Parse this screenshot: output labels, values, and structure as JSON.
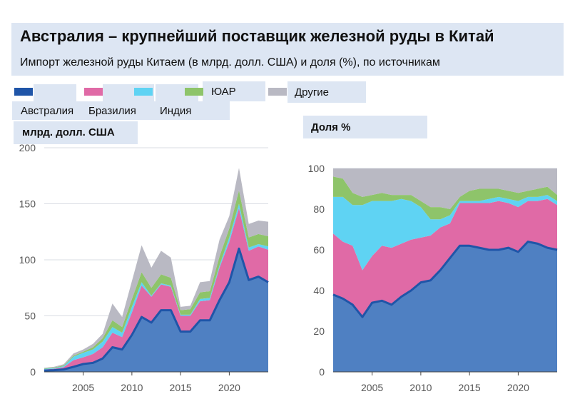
{
  "title": "Австралия – крупнейший поставщик железной руды в Китай",
  "subtitle": "Импорт железной руды Китаем (в млрд. долл. США) и доля (%), по источникам",
  "legend": [
    {
      "name": "Австралия",
      "color": "#1f55a8"
    },
    {
      "name": "Бразилия",
      "color": "#e06aa6"
    },
    {
      "name": "Индия",
      "color": "#5fd3f3"
    },
    {
      "name": "ЮАР",
      "color": "#8ec46a"
    },
    {
      "name": "Другие",
      "color": "#b9b9c3"
    }
  ],
  "colors": {
    "header_bg": "#dde6f3",
    "grid": "#d9dde3",
    "axis": "#444444",
    "line": "#1f55a8"
  },
  "chart_data": [
    {
      "type": "area",
      "stacked": true,
      "title": "млрд. долл. США",
      "ylabel": "млрд. долл. США",
      "x": [
        2001,
        2002,
        2003,
        2004,
        2005,
        2006,
        2007,
        2008,
        2009,
        2010,
        2011,
        2012,
        2013,
        2014,
        2015,
        2016,
        2017,
        2018,
        2019,
        2020,
        2021,
        2022,
        2023,
        2024
      ],
      "xticks": [
        2005,
        2010,
        2015,
        2020
      ],
      "xlim": [
        2001,
        2024
      ],
      "ylim": [
        0,
        200
      ],
      "yticks": [
        0,
        50,
        100,
        150,
        200
      ],
      "series": [
        {
          "name": "Австралия",
          "values": [
            1.2,
            1.5,
            2.2,
            4.5,
            7,
            8,
            12,
            22,
            20,
            33,
            49,
            44,
            55,
            55,
            36,
            36,
            46,
            46,
            64,
            80,
            110,
            82,
            85,
            80
          ]
        },
        {
          "name": "Бразилия",
          "values": [
            1,
            1.3,
            2,
            6,
            6,
            8,
            10,
            13,
            11,
            20,
            28,
            23,
            23,
            21,
            14,
            14,
            17,
            18,
            29,
            36,
            36,
            26,
            27,
            29
          ]
        },
        {
          "name": "Индия",
          "values": [
            0.5,
            0.6,
            0.9,
            3,
            4,
            4,
            5,
            5,
            4,
            5,
            3,
            1,
            1,
            1,
            1,
            1,
            2,
            2,
            2,
            4,
            4,
            3,
            2,
            3
          ]
        },
        {
          "name": "ЮАР",
          "values": [
            0.4,
            0.5,
            0.7,
            1,
            1,
            2,
            3,
            6,
            5,
            7,
            9,
            7,
            8,
            7,
            4,
            5,
            6,
            6,
            8,
            8,
            12,
            9,
            9,
            9
          ]
        },
        {
          "name": "Другие",
          "values": [
            0.5,
            0.6,
            1,
            2,
            2,
            3,
            4,
            15,
            9,
            16,
            24,
            18,
            21,
            18,
            3,
            3,
            9,
            9,
            15,
            11,
            20,
            12,
            12,
            13
          ]
        }
      ]
    },
    {
      "type": "area",
      "stacked": true,
      "title": "Доля %",
      "ylabel": "Доля %",
      "x": [
        2001,
        2002,
        2003,
        2004,
        2005,
        2006,
        2007,
        2008,
        2009,
        2010,
        2011,
        2012,
        2013,
        2014,
        2015,
        2016,
        2017,
        2018,
        2019,
        2020,
        2021,
        2022,
        2023,
        2024
      ],
      "xticks": [
        2005,
        2010,
        2015,
        2020
      ],
      "xlim": [
        2001,
        2024
      ],
      "ylim": [
        0,
        100
      ],
      "yticks": [
        0,
        20,
        40,
        60,
        80,
        100
      ],
      "series": [
        {
          "name": "Австралия",
          "values": [
            38,
            36,
            33,
            27,
            34,
            35,
            33,
            37,
            40,
            44,
            45,
            50,
            56,
            62,
            62,
            61,
            60,
            60,
            61,
            59,
            64,
            63,
            61,
            60
          ]
        },
        {
          "name": "Бразилия",
          "values": [
            30,
            28,
            29,
            23,
            23,
            27,
            28,
            26,
            25,
            22,
            22,
            21,
            17,
            21,
            21,
            22,
            23,
            24,
            22,
            22,
            20,
            21,
            24,
            22
          ]
        },
        {
          "name": "Индия",
          "values": [
            18,
            22,
            20,
            32,
            27,
            22,
            23,
            22,
            19,
            15,
            8,
            4,
            4,
            1,
            1,
            1,
            2,
            2,
            2,
            3,
            2,
            2,
            2,
            2
          ]
        },
        {
          "name": "ЮАР",
          "values": [
            10,
            9,
            6,
            4,
            3,
            4,
            3,
            2,
            3,
            3,
            6,
            6,
            3,
            2,
            5,
            6,
            5,
            4,
            4,
            4,
            3,
            4,
            4,
            3
          ]
        },
        {
          "name": "Другие",
          "values": [
            4,
            5,
            12,
            14,
            13,
            12,
            13,
            13,
            13,
            16,
            19,
            19,
            20,
            14,
            11,
            10,
            10,
            10,
            11,
            12,
            11,
            10,
            9,
            13
          ]
        }
      ]
    }
  ]
}
